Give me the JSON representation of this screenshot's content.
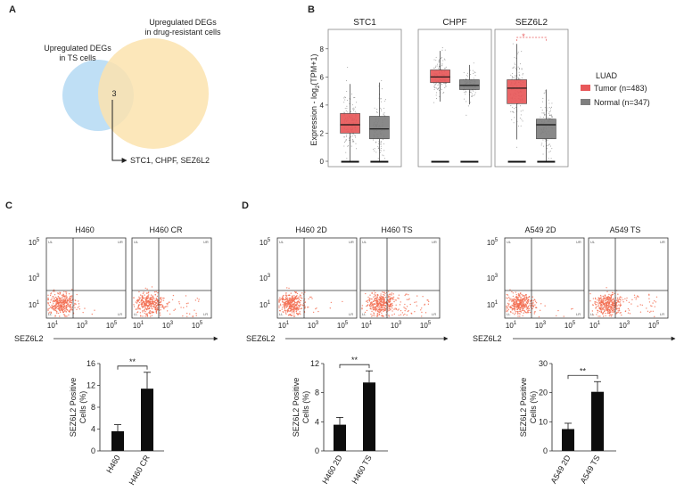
{
  "panels": {
    "A": {
      "label": "A",
      "left_set": {
        "line1": "Upregulated  DEGs",
        "line2": "in TS cells",
        "color": "#bfdff5"
      },
      "right_set": {
        "line1": "Upregulated DEGs",
        "line2": "in drug-resistant cells",
        "color": "#fbe3ae"
      },
      "overlap_count": "3",
      "genes": "STC1, CHPF, SEZ6L2"
    },
    "B": {
      "label": "B",
      "ylabel_main": "Expression - log",
      "ylabel_sub": "2",
      "ylabel_end": "(TPM+1)",
      "legend_title": "LUAD",
      "legend": [
        {
          "label": "Tumor (n=483)",
          "color": "#e8585a"
        },
        {
          "label": "Normal (n=347)",
          "color": "#7f7f7f"
        }
      ],
      "significance": "*"
    },
    "C": {
      "label": "C",
      "plots": [
        {
          "title": "H460"
        },
        {
          "title": "H460 CR"
        }
      ],
      "xlabel": "SEZ6L2"
    },
    "D": {
      "label": "D",
      "plots": [
        {
          "title": "H460 2D"
        },
        {
          "title": "H460 TS"
        },
        {
          "title": "A549 2D"
        },
        {
          "title": "A549 TS"
        }
      ],
      "xlabel": "SEZ6L2"
    },
    "flow_ticks": {
      "x": [
        "10",
        "10",
        "10"
      ],
      "x_exp": [
        "1",
        "3",
        "5"
      ]
    },
    "quadrants": {
      "ul": "UL",
      "ur": "UR",
      "ll": "LL",
      "lr": "LR"
    },
    "bar_ylabel": {
      "line1": "SEZ6L2 Positive",
      "line2": "Cells (%)"
    },
    "bar_sig": "**"
  },
  "chart_data": [
    {
      "type": "box",
      "panel": "B",
      "ylim": [
        0,
        9
      ],
      "yticks": [
        0,
        2,
        4,
        6,
        8
      ],
      "ylabel": "Expression - log2(TPM+1)",
      "genes": [
        {
          "name": "STC1",
          "tumor": {
            "q1": 2.0,
            "median": 2.6,
            "q3": 3.4
          },
          "normal": {
            "q1": 1.6,
            "median": 2.3,
            "q3": 3.2
          }
        },
        {
          "name": "CHPF",
          "tumor": {
            "q1": 5.6,
            "median": 6.0,
            "q3": 6.5
          },
          "normal": {
            "q1": 5.1,
            "median": 5.4,
            "q3": 5.8
          }
        },
        {
          "name": "SEZ6L2",
          "tumor": {
            "q1": 4.1,
            "median": 5.2,
            "q3": 5.8
          },
          "normal": {
            "q1": 1.6,
            "median": 2.6,
            "q3": 3.0
          }
        }
      ]
    },
    {
      "type": "bar",
      "panel": "C",
      "categories": [
        "H460",
        "H460 CR"
      ],
      "values": [
        3.6,
        11.4
      ],
      "errors": [
        1.2,
        3.0
      ],
      "ylim": [
        0,
        16
      ],
      "yticks": [
        0,
        4,
        8,
        12,
        16
      ]
    },
    {
      "type": "bar",
      "panel": "D-H460",
      "categories": [
        "H460 2D",
        "H460 TS"
      ],
      "values": [
        3.6,
        9.4
      ],
      "errors": [
        1.0,
        1.6
      ],
      "ylim": [
        0,
        12
      ],
      "yticks": [
        0,
        4,
        8,
        12
      ]
    },
    {
      "type": "bar",
      "panel": "D-A549",
      "categories": [
        "A549 2D",
        "A549 TS"
      ],
      "values": [
        7.5,
        20.3
      ],
      "errors": [
        2.0,
        3.5
      ],
      "ylim": [
        0,
        30
      ],
      "yticks": [
        0,
        10,
        20,
        30
      ]
    }
  ]
}
